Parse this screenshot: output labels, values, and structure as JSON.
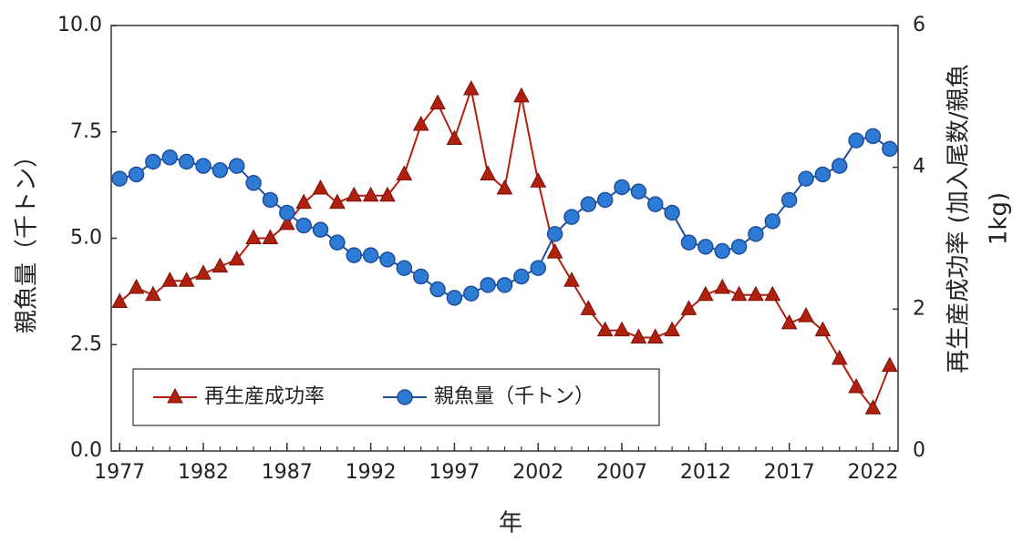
{
  "chart_data": {
    "type": "line",
    "x": [
      1977,
      1978,
      1979,
      1980,
      1981,
      1982,
      1983,
      1984,
      1985,
      1986,
      1987,
      1988,
      1989,
      1990,
      1991,
      1992,
      1993,
      1994,
      1995,
      1996,
      1997,
      1998,
      1999,
      2000,
      2001,
      2002,
      2003,
      2004,
      2005,
      2006,
      2007,
      2008,
      2009,
      2010,
      2011,
      2012,
      2013,
      2014,
      2015,
      2016,
      2017,
      2018,
      2019,
      2020,
      2021,
      2022,
      2023
    ],
    "xlim": [
      1976.5,
      2023.5
    ],
    "xticks": [
      1977,
      1982,
      1987,
      1992,
      1997,
      2002,
      2007,
      2012,
      2017,
      2022
    ],
    "xlabel": "年",
    "ylabel": "親魚量（千トン）",
    "y2label": [
      "再生産成功率 (加入尾数/親魚",
      "1kg)"
    ],
    "ylim": [
      0,
      10
    ],
    "yticks": [
      {
        "value": 0,
        "label": "0.0"
      },
      {
        "value": 2.5,
        "label": "2.5"
      },
      {
        "value": 5,
        "label": "5.0"
      },
      {
        "value": 7.5,
        "label": "7.5"
      },
      {
        "value": 10,
        "label": "10.0"
      }
    ],
    "y2lim": [
      0,
      6
    ],
    "y2ticks": [
      0,
      2,
      4,
      6
    ],
    "legend": "lower left",
    "series": [
      {
        "name": "再生産成功率",
        "color": "#b0200e",
        "marker": "triangle",
        "axis": "y2",
        "values": [
          2.1,
          2.3,
          2.2,
          2.4,
          2.4,
          2.5,
          2.6,
          2.7,
          3.0,
          3.0,
          3.2,
          3.5,
          3.7,
          3.5,
          3.6,
          3.6,
          3.6,
          3.9,
          4.6,
          4.9,
          4.4,
          5.1,
          3.9,
          3.7,
          5.0,
          3.8,
          2.8,
          2.4,
          2.0,
          1.7,
          1.7,
          1.6,
          1.6,
          1.7,
          2.0,
          2.2,
          2.3,
          2.2,
          2.2,
          2.2,
          1.8,
          1.9,
          1.7,
          1.3,
          0.9,
          0.6,
          1.2
        ]
      },
      {
        "name": "親魚量（千トン）",
        "color": "#1f4e9a",
        "marker": "circle",
        "values": [
          6.4,
          6.5,
          6.8,
          6.9,
          6.8,
          6.7,
          6.6,
          6.7,
          6.3,
          5.9,
          5.6,
          5.3,
          5.2,
          4.9,
          4.6,
          4.6,
          4.5,
          4.3,
          4.1,
          3.8,
          3.6,
          3.7,
          3.9,
          3.9,
          4.1,
          4.3,
          5.1,
          5.5,
          5.8,
          5.9,
          6.2,
          6.1,
          5.8,
          5.6,
          4.9,
          4.8,
          4.7,
          4.8,
          5.1,
          5.4,
          5.9,
          6.4,
          6.5,
          6.7,
          7.3,
          7.4,
          7.1
        ]
      }
    ]
  }
}
